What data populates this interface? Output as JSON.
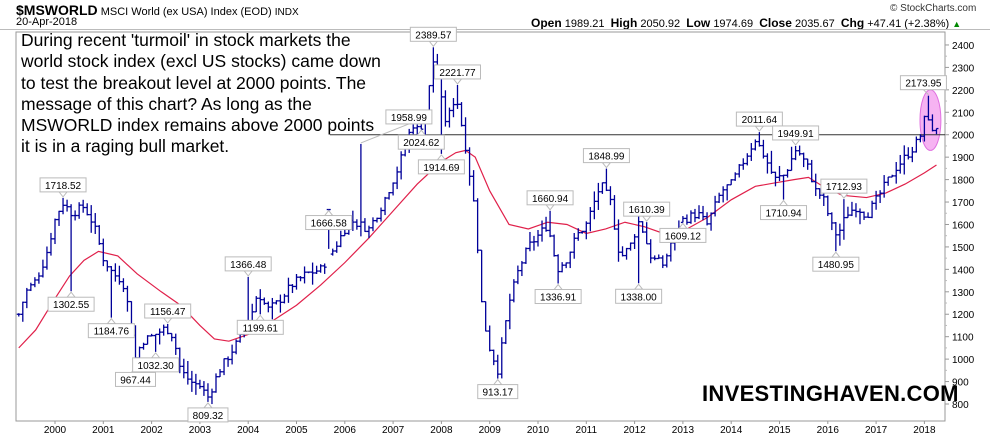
{
  "header": {
    "symbol": "$MSWORLD",
    "name": "MSCI World (ex USA) Index (EOD)",
    "exchange": "INDX",
    "date": "20-Apr-2018",
    "credit": "© StockCharts.com",
    "open_label": "Open",
    "open": "1989.21",
    "high_label": "High",
    "high": "2050.92",
    "low_label": "Low",
    "low": "1974.69",
    "close_label": "Close",
    "close": "2035.67",
    "chg_label": "Chg",
    "chg": "+47.41 (+2.38%)",
    "chg_icon": "triangle-up-icon"
  },
  "note": "During recent 'turmoil' in stock markets the\nworld stock index (excl US stocks) came down\nto test the breakout level at 2000 points. The\nmessage of this chart? As long as the\nMSWORLD index remains above 2000 points\nit is in a raging bull market.",
  "watermark": "INVESTINGHAVEN.COM",
  "colors": {
    "bars": "#000099",
    "ma": "#e0204a",
    "level": "#cc00cc",
    "highlight": "#f4a6f0"
  },
  "chart_data": {
    "type": "ohlc",
    "frequency": "monthly",
    "ylim": [
      760,
      2450
    ],
    "xlim": [
      1999.2,
      2018.35
    ],
    "y_ticks": [
      800,
      900,
      1000,
      1100,
      1200,
      1300,
      1400,
      1500,
      1600,
      1700,
      1800,
      1900,
      2000,
      2100,
      2200,
      2300,
      2400
    ],
    "x_ticks": [
      "2000",
      "2001",
      "2002",
      "2003",
      "2004",
      "2005",
      "2006",
      "2007",
      "2008",
      "2009",
      "2010",
      "2011",
      "2012",
      "2013",
      "2014",
      "2015",
      "2016",
      "2017",
      "2018"
    ],
    "horizontal_level": 2000,
    "highlight_region": {
      "x": [
        2017.95,
        2018.3
      ],
      "y": [
        1930,
        2200
      ]
    },
    "price_path": [
      [
        1999.25,
        1200
      ],
      [
        1999.4,
        1300
      ],
      [
        1999.6,
        1350
      ],
      [
        1999.8,
        1450
      ],
      [
        2000.0,
        1620
      ],
      [
        2000.15,
        1700
      ],
      [
        2000.35,
        1650
      ],
      [
        2000.6,
        1680
      ],
      [
        2000.8,
        1600
      ],
      [
        2001.0,
        1450
      ],
      [
        2001.2,
        1380
      ],
      [
        2001.4,
        1350
      ],
      [
        2001.5,
        1250
      ],
      [
        2001.66,
        1000
      ],
      [
        2001.8,
        1080
      ],
      [
        2002.0,
        1100
      ],
      [
        2002.3,
        1140
      ],
      [
        2002.45,
        1100
      ],
      [
        2002.6,
        950
      ],
      [
        2002.8,
        900
      ],
      [
        2003.0,
        880
      ],
      [
        2003.17,
        830
      ],
      [
        2003.4,
        950
      ],
      [
        2003.7,
        1050
      ],
      [
        2004.0,
        1150
      ],
      [
        2004.2,
        1300
      ],
      [
        2004.4,
        1220
      ],
      [
        2004.6,
        1250
      ],
      [
        2004.9,
        1330
      ],
      [
        2005.2,
        1380
      ],
      [
        2005.5,
        1400
      ],
      [
        2005.8,
        1500
      ],
      [
        2006.1,
        1620
      ],
      [
        2006.3,
        1600
      ],
      [
        2006.5,
        1580
      ],
      [
        2006.8,
        1700
      ],
      [
        2007.1,
        1850
      ],
      [
        2007.4,
        2050
      ],
      [
        2007.6,
        2000
      ],
      [
        2007.85,
        2350
      ],
      [
        2008.0,
        2150
      ],
      [
        2008.1,
        2050
      ],
      [
        2008.3,
        2180
      ],
      [
        2008.5,
        1950
      ],
      [
        2008.7,
        1650
      ],
      [
        2008.85,
        1200
      ],
      [
        2009.0,
        1050
      ],
      [
        2009.17,
        950
      ],
      [
        2009.4,
        1250
      ],
      [
        2009.6,
        1400
      ],
      [
        2009.8,
        1500
      ],
      [
        2010.0,
        1550
      ],
      [
        2010.2,
        1600
      ],
      [
        2010.4,
        1400
      ],
      [
        2010.6,
        1450
      ],
      [
        2010.8,
        1550
      ],
      [
        2011.0,
        1600
      ],
      [
        2011.3,
        1780
      ],
      [
        2011.5,
        1700
      ],
      [
        2011.7,
        1450
      ],
      [
        2011.9,
        1500
      ],
      [
        2012.1,
        1620
      ],
      [
        2012.35,
        1450
      ],
      [
        2012.6,
        1420
      ],
      [
        2012.8,
        1550
      ],
      [
        2013.0,
        1620
      ],
      [
        2013.3,
        1650
      ],
      [
        2013.5,
        1600
      ],
      [
        2013.8,
        1750
      ],
      [
        2014.0,
        1780
      ],
      [
        2014.3,
        1900
      ],
      [
        2014.5,
        1980
      ],
      [
        2014.7,
        1900
      ],
      [
        2014.9,
        1800
      ],
      [
        2015.1,
        1820
      ],
      [
        2015.35,
        1940
      ],
      [
        2015.6,
        1850
      ],
      [
        2015.75,
        1750
      ],
      [
        2015.9,
        1720
      ],
      [
        2016.1,
        1580
      ],
      [
        2016.2,
        1550
      ],
      [
        2016.4,
        1650
      ],
      [
        2016.6,
        1680
      ],
      [
        2016.8,
        1640
      ],
      [
        2016.95,
        1690
      ],
      [
        2017.2,
        1780
      ],
      [
        2017.4,
        1850
      ],
      [
        2017.6,
        1900
      ],
      [
        2017.8,
        1950
      ],
      [
        2017.95,
        2010
      ],
      [
        2018.05,
        2120
      ],
      [
        2018.15,
        2000
      ],
      [
        2018.25,
        2035.67
      ]
    ],
    "moving_average": [
      [
        1999.25,
        1050
      ],
      [
        1999.6,
        1130
      ],
      [
        2000.0,
        1270
      ],
      [
        2000.3,
        1370
      ],
      [
        2000.6,
        1440
      ],
      [
        2000.9,
        1480
      ],
      [
        2001.3,
        1460
      ],
      [
        2001.7,
        1380
      ],
      [
        2002.2,
        1300
      ],
      [
        2002.6,
        1240
      ],
      [
        2003.0,
        1150
      ],
      [
        2003.3,
        1090
      ],
      [
        2003.6,
        1080
      ],
      [
        2004.0,
        1110
      ],
      [
        2004.5,
        1170
      ],
      [
        2005.0,
        1240
      ],
      [
        2005.5,
        1330
      ],
      [
        2006.0,
        1430
      ],
      [
        2006.5,
        1540
      ],
      [
        2007.0,
        1660
      ],
      [
        2007.5,
        1780
      ],
      [
        2008.0,
        1880
      ],
      [
        2008.3,
        1920
      ],
      [
        2008.5,
        1930
      ],
      [
        2008.7,
        1900
      ],
      [
        2009.0,
        1750
      ],
      [
        2009.4,
        1600
      ],
      [
        2009.8,
        1580
      ],
      [
        2010.2,
        1610
      ],
      [
        2010.6,
        1600
      ],
      [
        2011.0,
        1560
      ],
      [
        2011.4,
        1580
      ],
      [
        2011.8,
        1610
      ],
      [
        2012.2,
        1590
      ],
      [
        2012.6,
        1560
      ],
      [
        2013.0,
        1570
      ],
      [
        2013.5,
        1630
      ],
      [
        2014.0,
        1710
      ],
      [
        2014.5,
        1770
      ],
      [
        2014.9,
        1785
      ],
      [
        2015.3,
        1800
      ],
      [
        2015.6,
        1810
      ],
      [
        2015.9,
        1770
      ],
      [
        2016.3,
        1730
      ],
      [
        2016.8,
        1720
      ],
      [
        2017.2,
        1740
      ],
      [
        2017.6,
        1780
      ],
      [
        2018.0,
        1830
      ],
      [
        2018.25,
        1865
      ]
    ],
    "annotations": [
      {
        "t": 2000.15,
        "label": "1718.52",
        "pos": "above"
      },
      {
        "t": 2000.31,
        "label": "1302.55",
        "pos": "below"
      },
      {
        "t": 2001.17,
        "label": "1184.76",
        "pos": "below"
      },
      {
        "t": 2001.66,
        "label": "967.44",
        "pos": "below"
      },
      {
        "t": 2002.05,
        "label": "1032.30",
        "pos": "below"
      },
      {
        "t": 2002.32,
        "label": "1156.47",
        "pos": "above"
      },
      {
        "t": 2003.17,
        "label": "809.32",
        "pos": "below"
      },
      {
        "t": 2004.04,
        "label": "1366.48",
        "pos": "above"
      },
      {
        "t": 2004.28,
        "label": "1199.61",
        "pos": "below"
      },
      {
        "t": 2005.7,
        "label": "1666.58",
        "pos": "below"
      },
      {
        "t": 2006.37,
        "label": "1958.99",
        "pos": "above"
      },
      {
        "t": 2007.58,
        "label": "2024.62",
        "pos": "below"
      },
      {
        "t": 2007.87,
        "label": "2389.57",
        "pos": "above"
      },
      {
        "t": 2008.03,
        "label": "1914.69",
        "pos": "below"
      },
      {
        "t": 2008.36,
        "label": "2221.77",
        "pos": "above"
      },
      {
        "t": 2009.17,
        "label": "913.17",
        "pos": "below"
      },
      {
        "t": 2010.29,
        "label": "1660.94",
        "pos": "above"
      },
      {
        "t": 2010.41,
        "label": "1336.91",
        "pos": "below"
      },
      {
        "t": 2011.39,
        "label": "1848.99",
        "pos": "above"
      },
      {
        "t": 2012.11,
        "label": "1338.00",
        "pos": "below"
      },
      {
        "t": 2012.22,
        "label": "1610.39",
        "pos": "above"
      },
      {
        "t": 2013.0,
        "label": "1609.12",
        "pos": "below"
      },
      {
        "t": 2014.55,
        "label": "2011.64",
        "pos": "above"
      },
      {
        "t": 2015.05,
        "label": "1710.94",
        "pos": "below"
      },
      {
        "t": 2015.3,
        "label": "1949.91",
        "pos": "above"
      },
      {
        "t": 2016.15,
        "label": "1480.95",
        "pos": "below"
      },
      {
        "t": 2016.31,
        "label": "1712.93",
        "pos": "above"
      },
      {
        "t": 2018.07,
        "label": "2173.95",
        "pos": "above"
      }
    ]
  }
}
